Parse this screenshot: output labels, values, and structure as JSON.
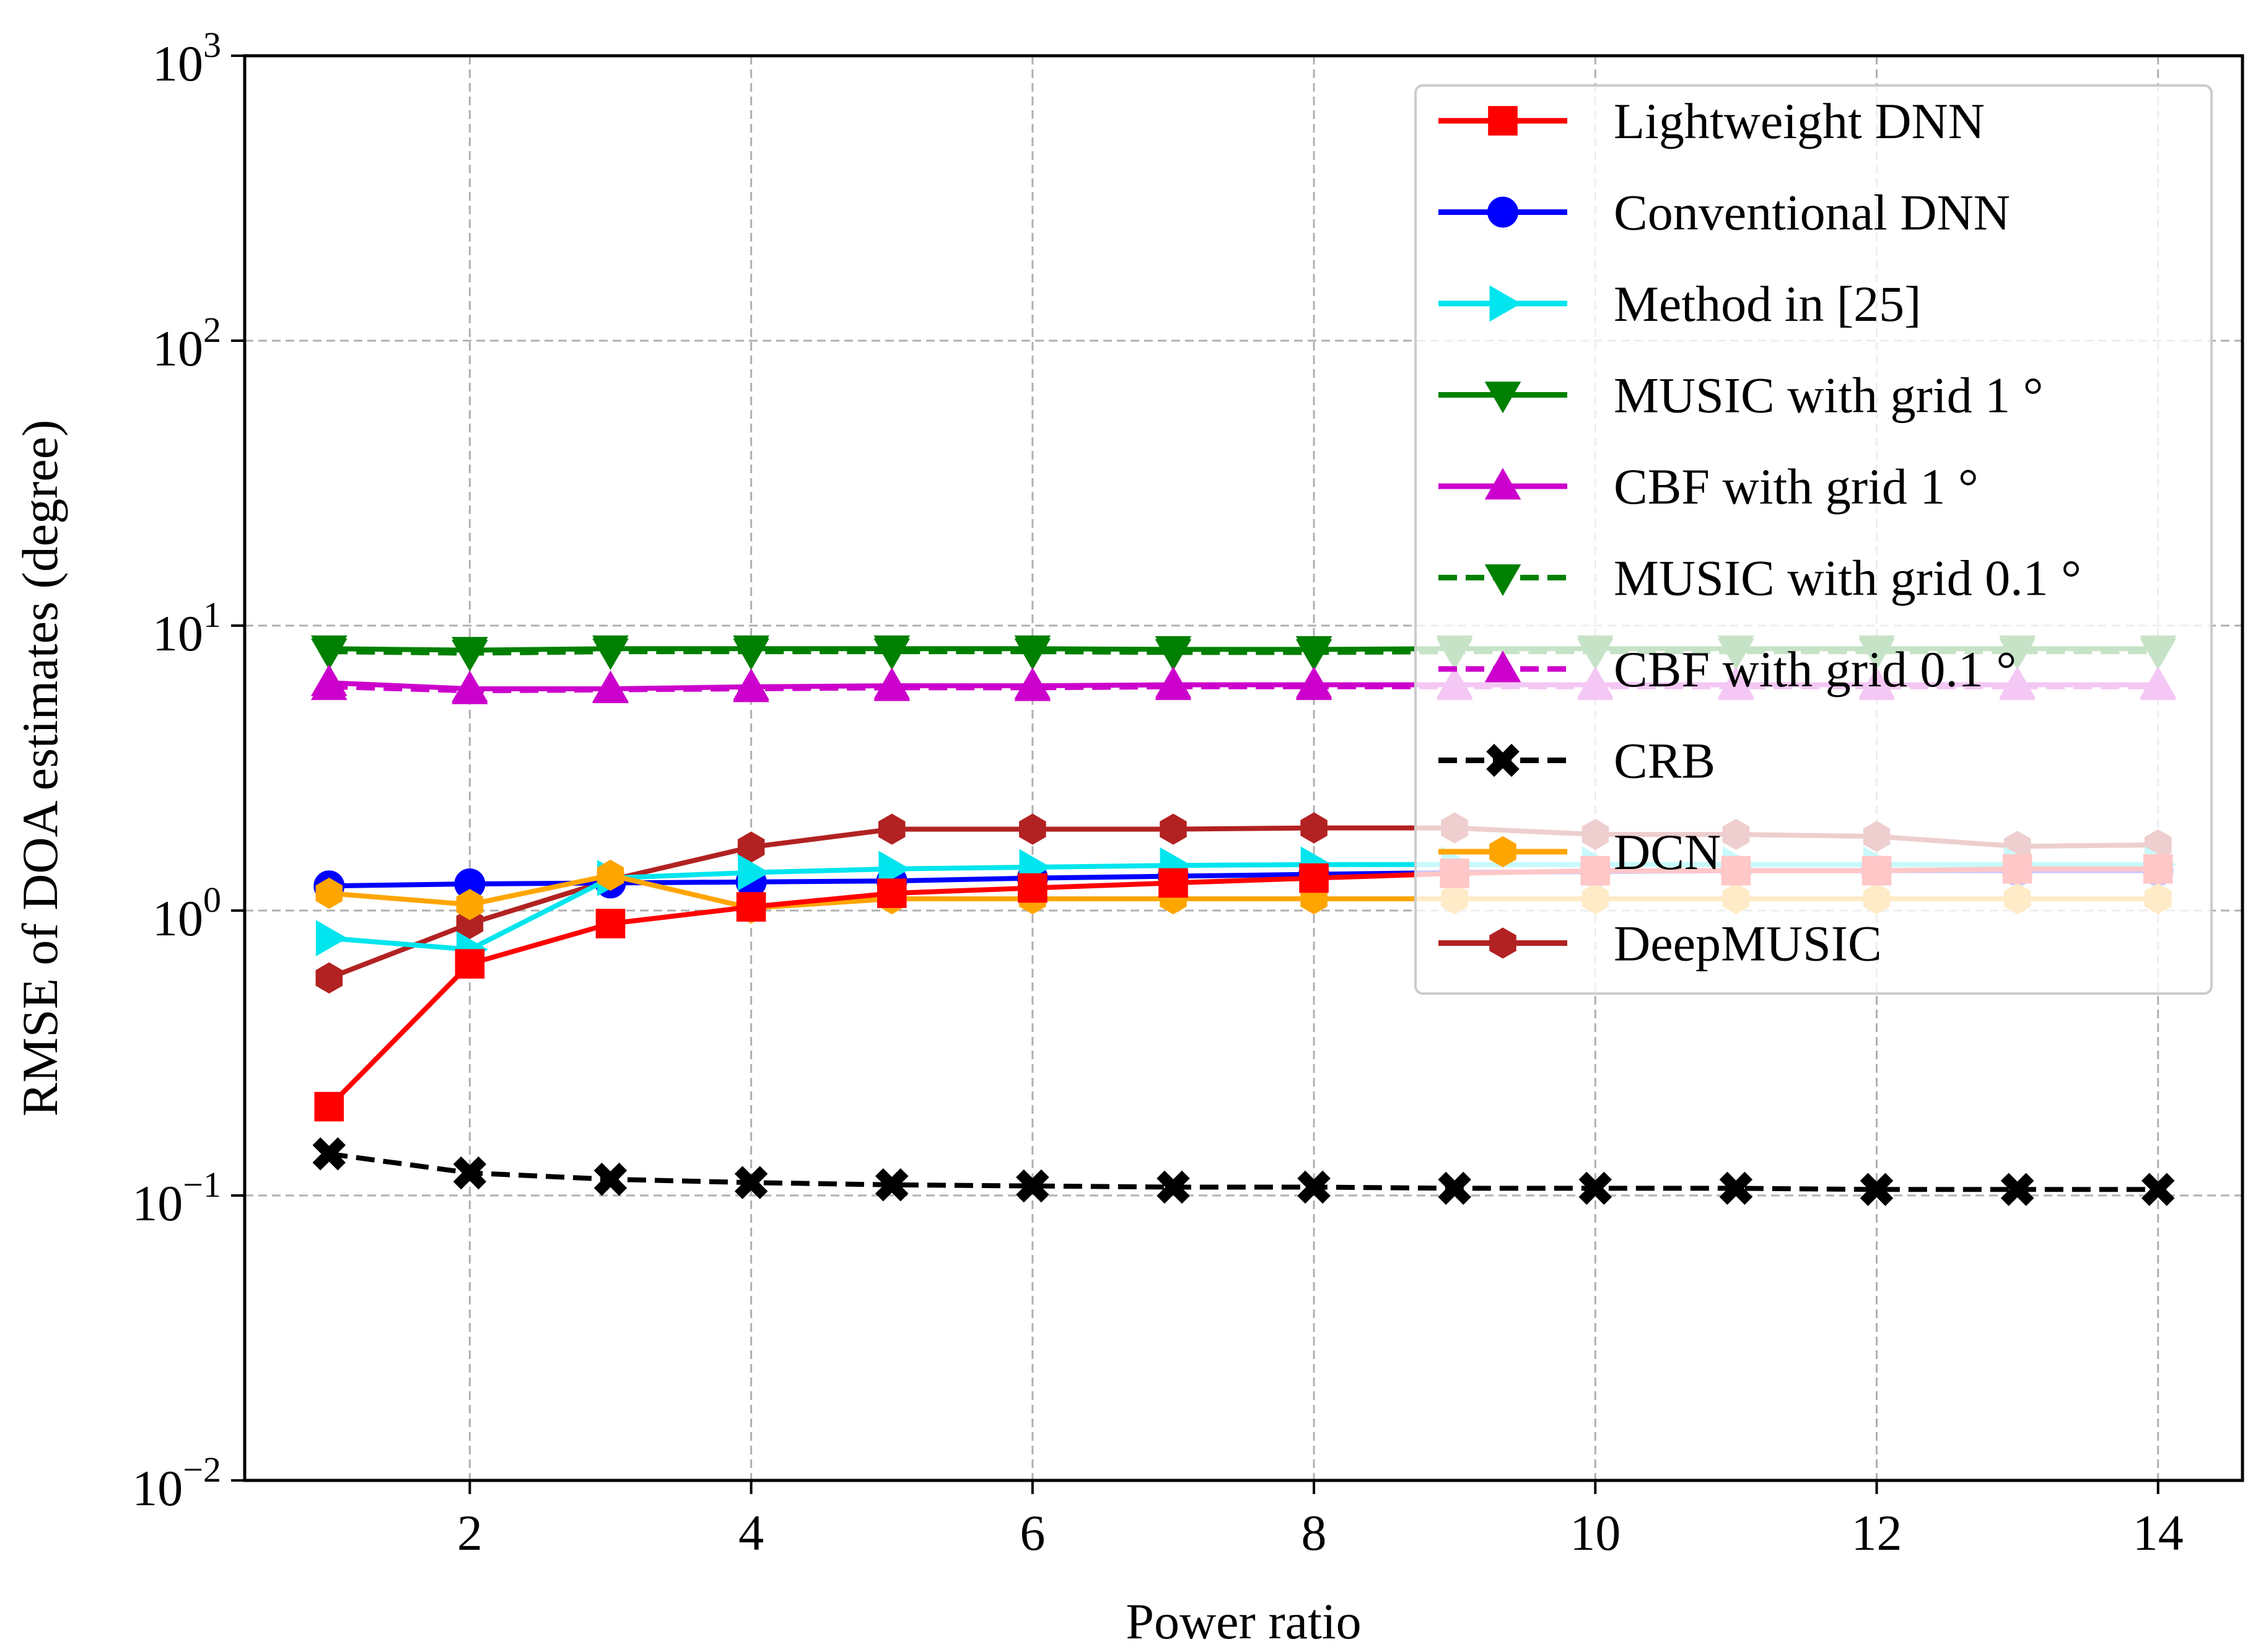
{
  "chart_data": {
    "type": "line",
    "xlabel": "Power ratio",
    "ylabel": "RMSE of DOA estimates (degree)",
    "yscale": "log",
    "xlim": [
      0.4,
      14.6
    ],
    "ylim": [
      0.01,
      1000
    ],
    "grid": true,
    "legend_position": "upper-right",
    "x_ticks": [
      2,
      4,
      6,
      8,
      10,
      12,
      14
    ],
    "y_ticks": [
      {
        "value": 0.01,
        "base": "10",
        "exp": "−2"
      },
      {
        "value": 0.1,
        "base": "10",
        "exp": "−1"
      },
      {
        "value": 1,
        "base": "10",
        "exp": "0"
      },
      {
        "value": 10,
        "base": "10",
        "exp": "1"
      },
      {
        "value": 100,
        "base": "10",
        "exp": "2"
      },
      {
        "value": 1000,
        "base": "10",
        "exp": "3"
      }
    ],
    "x": [
      1,
      2,
      3,
      4,
      5,
      6,
      7,
      8,
      9,
      10,
      11,
      12,
      13,
      14
    ],
    "series": [
      {
        "name": "MUSIC with grid 0.1 °",
        "color": "#008000",
        "marker": "triangle-down",
        "dashed": true,
        "values": [
          8.1,
          8.0,
          8.1,
          8.1,
          8.1,
          8.1,
          8.05,
          8.05,
          8.1,
          8.1,
          8.1,
          8.1,
          8.1,
          8.1
        ]
      },
      {
        "name": "CBF with grid 0.1 °",
        "color": "#cc00cc",
        "marker": "triangle-up",
        "dashed": true,
        "values": [
          6.1,
          5.9,
          5.95,
          6.0,
          6.05,
          6.05,
          6.1,
          6.1,
          6.1,
          6.1,
          6.1,
          6.1,
          6.1,
          6.1
        ]
      },
      {
        "name": "MUSIC with grid 1 °",
        "color": "#008000",
        "marker": "triangle-down",
        "dashed": false,
        "values": [
          8.3,
          8.2,
          8.3,
          8.3,
          8.3,
          8.3,
          8.25,
          8.25,
          8.3,
          8.3,
          8.3,
          8.3,
          8.3,
          8.3
        ]
      },
      {
        "name": "CBF with grid 1 °",
        "color": "#cc00cc",
        "marker": "triangle-up",
        "dashed": false,
        "values": [
          6.3,
          6.0,
          6.0,
          6.1,
          6.15,
          6.15,
          6.2,
          6.2,
          6.2,
          6.2,
          6.2,
          6.2,
          6.2,
          6.2
        ]
      },
      {
        "name": "DeepMUSIC",
        "color": "#b22222",
        "marker": "hexagon",
        "dashed": false,
        "values": [
          0.58,
          0.9,
          1.28,
          1.67,
          1.93,
          1.93,
          1.93,
          1.95,
          1.95,
          1.85,
          1.85,
          1.82,
          1.68,
          1.7
        ]
      },
      {
        "name": "Conventional DNN",
        "color": "#0000ff",
        "marker": "circle",
        "dashed": false,
        "values": [
          1.22,
          1.24,
          1.25,
          1.26,
          1.27,
          1.3,
          1.32,
          1.34,
          1.36,
          1.37,
          1.38,
          1.38,
          1.38,
          1.38
        ]
      },
      {
        "name": "Method in [25]",
        "color": "#00e5ee",
        "marker": "triangle-right",
        "dashed": false,
        "values": [
          0.8,
          0.73,
          1.3,
          1.36,
          1.4,
          1.42,
          1.44,
          1.45,
          1.45,
          1.45,
          1.45,
          1.45,
          1.45,
          1.45
        ]
      },
      {
        "name": "DCN",
        "color": "#ffa500",
        "marker": "hexagon",
        "dashed": false,
        "values": [
          1.15,
          1.05,
          1.33,
          1.02,
          1.1,
          1.1,
          1.1,
          1.1,
          1.1,
          1.1,
          1.1,
          1.1,
          1.1,
          1.1
        ]
      },
      {
        "name": "Lightweight DNN",
        "color": "#ff0000",
        "marker": "square",
        "dashed": false,
        "values": [
          0.205,
          0.65,
          0.9,
          1.03,
          1.15,
          1.2,
          1.25,
          1.3,
          1.35,
          1.38,
          1.38,
          1.38,
          1.4,
          1.4
        ]
      },
      {
        "name": "CRB",
        "color": "#000000",
        "marker": "x-filled",
        "dashed": true,
        "values": [
          0.14,
          0.12,
          0.114,
          0.111,
          0.109,
          0.108,
          0.107,
          0.107,
          0.106,
          0.106,
          0.106,
          0.105,
          0.105,
          0.105
        ]
      }
    ],
    "legend_order": [
      "Lightweight DNN",
      "Conventional DNN",
      "Method in [25]",
      "MUSIC with grid 1 °",
      "CBF with grid 1 °",
      "MUSIC with grid 0.1 °",
      "CBF with grid 0.1 °",
      "CRB",
      "DCN",
      "DeepMUSIC"
    ]
  }
}
